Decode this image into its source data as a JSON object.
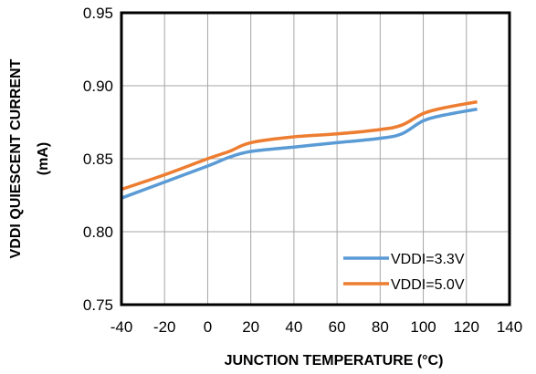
{
  "chart_data": {
    "type": "line",
    "title": "",
    "xlabel": "JUNCTION TEMPERATURE (°C)",
    "ylabel": [
      "VDDI QUIESCENT CURRENT",
      "(mA)"
    ],
    "xlim": [
      -40,
      140
    ],
    "ylim": [
      0.75,
      0.95
    ],
    "xticks": [
      -40,
      -20,
      0,
      20,
      40,
      60,
      80,
      100,
      120,
      140
    ],
    "yticks": [
      0.75,
      0.8,
      0.85,
      0.9,
      0.95
    ],
    "xtick_labels": [
      "-40",
      "-20",
      "0",
      "20",
      "40",
      "60",
      "80",
      "100",
      "120",
      "140"
    ],
    "ytick_labels": [
      "0.75",
      "0.80",
      "0.85",
      "0.90",
      "0.95"
    ],
    "grid": true,
    "legend_position": "bottom-right",
    "series": [
      {
        "name": "VDDI=3.3V",
        "color": "#5b9bd5",
        "x": [
          -40,
          -20,
          0,
          10,
          20,
          40,
          60,
          80,
          90,
          100,
          110,
          125
        ],
        "y": [
          0.823,
          0.834,
          0.845,
          0.851,
          0.855,
          0.858,
          0.861,
          0.864,
          0.867,
          0.876,
          0.88,
          0.884
        ]
      },
      {
        "name": "VDDI=5.0V",
        "color": "#ed7d31",
        "x": [
          -40,
          -20,
          0,
          10,
          20,
          40,
          60,
          80,
          90,
          100,
          110,
          125
        ],
        "y": [
          0.829,
          0.839,
          0.85,
          0.855,
          0.861,
          0.865,
          0.867,
          0.87,
          0.873,
          0.881,
          0.885,
          0.889
        ]
      }
    ]
  }
}
